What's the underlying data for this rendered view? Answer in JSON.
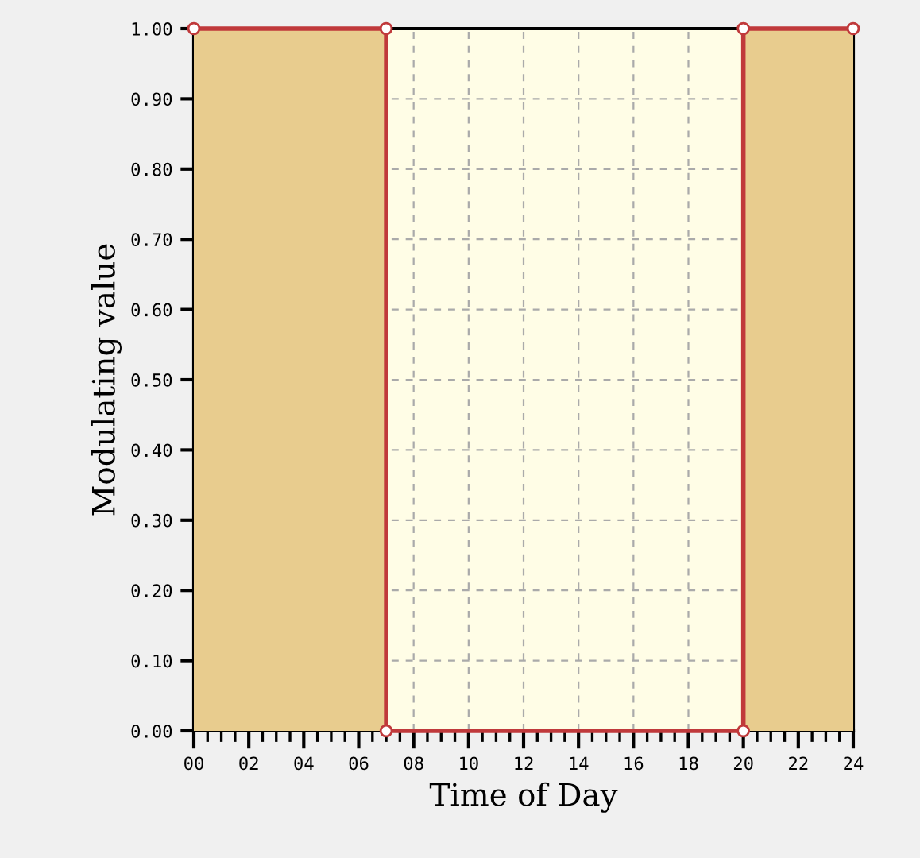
{
  "chart_data": {
    "type": "area",
    "xlabel": "Time of Day",
    "ylabel": "Modulating value",
    "x": [
      0,
      7,
      7,
      20,
      20,
      24
    ],
    "series": [
      {
        "color": "#e8cc8e",
        "values": [
          1,
          1,
          0,
          0,
          1,
          1
        ]
      }
    ],
    "xlim": [
      0,
      24
    ],
    "ylim": [
      0,
      1
    ],
    "xticks": [
      {
        "value": 0,
        "label": "00"
      },
      {
        "value": 2,
        "label": "02"
      },
      {
        "value": 4,
        "label": "04"
      },
      {
        "value": 6,
        "label": "06"
      },
      {
        "value": 8,
        "label": "08"
      },
      {
        "value": 10,
        "label": "10"
      },
      {
        "value": 12,
        "label": "12"
      },
      {
        "value": 14,
        "label": "14"
      },
      {
        "value": 16,
        "label": "16"
      },
      {
        "value": 18,
        "label": "18"
      },
      {
        "value": 20,
        "label": "20"
      },
      {
        "value": 22,
        "label": "22"
      },
      {
        "value": 24,
        "label": "24"
      }
    ],
    "yticks": [
      {
        "value": 0,
        "label": "0.00"
      },
      {
        "value": 0.1,
        "label": "0.10"
      },
      {
        "value": 0.2,
        "label": "0.20"
      },
      {
        "value": 0.3,
        "label": "0.30"
      },
      {
        "value": 0.4,
        "label": "0.40"
      },
      {
        "value": 0.5,
        "label": "0.50"
      },
      {
        "value": 0.6,
        "label": "0.60"
      },
      {
        "value": 0.7,
        "label": "0.70"
      },
      {
        "value": 0.8,
        "label": "0.80"
      },
      {
        "value": 0.9,
        "label": "0.90"
      },
      {
        "value": 1,
        "label": "1.00"
      }
    ],
    "grid": true,
    "marker": "circle",
    "line_style": "solid"
  }
}
